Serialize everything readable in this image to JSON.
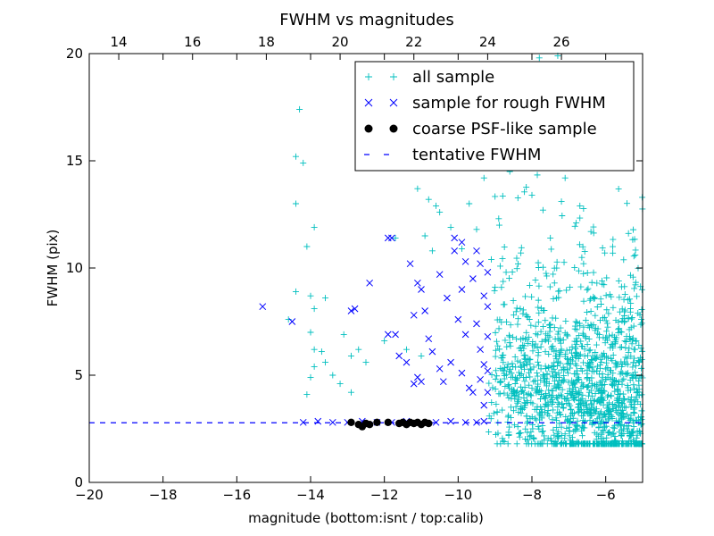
{
  "chart_data": {
    "type": "scatter",
    "title": "FWHM vs magnitudes",
    "xlabel": "magnitude (bottom:isnt / top:calib)",
    "ylabel": "FWHM (pix)",
    "xlim": [
      -20,
      -5
    ],
    "ylim": [
      0,
      20
    ],
    "x_ticks": [
      -20,
      -18,
      -16,
      -14,
      -12,
      -10,
      -8,
      -6
    ],
    "y_ticks": [
      0,
      5,
      10,
      15,
      20
    ],
    "top_axis": {
      "ticks": [
        14,
        16,
        18,
        20,
        22,
        24,
        26
      ],
      "offset": 33.2
    },
    "grid": false,
    "legend_position": "top-right",
    "series": [
      {
        "name": "all sample",
        "marker": "plus",
        "color": "#00bfbf",
        "points": [
          [
            -14.3,
            17.4
          ],
          [
            -14.4,
            15.2
          ],
          [
            -14.2,
            14.9
          ],
          [
            -14.4,
            13.0
          ],
          [
            -13.9,
            11.9
          ],
          [
            -14.1,
            11.0
          ],
          [
            -14.4,
            8.9
          ],
          [
            -14.0,
            8.7
          ],
          [
            -13.9,
            8.1
          ],
          [
            -14.6,
            7.6
          ],
          [
            -14.0,
            7.0
          ],
          [
            -13.9,
            6.2
          ],
          [
            -13.9,
            5.4
          ],
          [
            -14.0,
            4.9
          ],
          [
            -14.1,
            4.1
          ],
          [
            -13.7,
            6.1
          ],
          [
            -13.6,
            5.6
          ],
          [
            -13.4,
            5.0
          ],
          [
            -13.2,
            4.6
          ],
          [
            -12.9,
            5.9
          ],
          [
            -12.7,
            6.2
          ],
          [
            -12.9,
            4.2
          ],
          [
            -12.5,
            5.6
          ],
          [
            -12.0,
            6.6
          ],
          [
            -11.4,
            6.2
          ],
          [
            -11.0,
            5.9
          ],
          [
            -13.6,
            8.6
          ],
          [
            -13.1,
            6.9
          ],
          [
            -11.7,
            11.4
          ],
          [
            -11.1,
            13.7
          ],
          [
            -10.8,
            13.2
          ],
          [
            -10.6,
            12.9
          ],
          [
            -10.7,
            10.8
          ],
          [
            -10.2,
            11.9
          ],
          [
            -10.9,
            11.5
          ],
          [
            -9.7,
            13.0
          ],
          [
            -9.3,
            14.2
          ],
          [
            -10.5,
            12.6
          ],
          [
            -9.9,
            10.9
          ],
          [
            -9.5,
            11.8
          ],
          [
            -8.8,
            15.6
          ],
          [
            -8.5,
            16.6
          ],
          [
            -8.2,
            17.2
          ],
          [
            -7.9,
            16.1
          ],
          [
            -7.4,
            15.3
          ],
          [
            -7.1,
            14.2
          ],
          [
            -6.8,
            12.1
          ],
          [
            -6.4,
            11.7
          ],
          [
            -6.1,
            9.4
          ],
          [
            -5.2,
            10.6
          ],
          [
            -6.0,
            5.3
          ],
          [
            -5.4,
            5.1
          ],
          [
            -5.1,
            5.6
          ],
          [
            -7.8,
            19.8
          ],
          [
            -7.3,
            19.9
          ],
          [
            -6.9,
            18.6
          ],
          [
            -8.1,
            18.3
          ],
          [
            -7.6,
            17.6
          ],
          [
            -8.6,
            14.5
          ],
          [
            -8.0,
            13.4
          ],
          [
            -7.7,
            12.7
          ],
          [
            -7.2,
            13.1
          ],
          [
            -6.7,
            12.9
          ],
          [
            -7.5,
            11.4
          ],
          [
            -8.3,
            10.7
          ],
          [
            -6.6,
            10.2
          ],
          [
            -6.3,
            8.6
          ],
          [
            -8.9,
            12.3
          ],
          [
            -9.1,
            10.4
          ],
          [
            -8.7,
            9.8
          ],
          [
            -9.0,
            9.1
          ],
          [
            -7.4,
            2.2
          ],
          [
            -7.7,
            2.4
          ],
          [
            -6.9,
            1.9
          ],
          [
            -5.8,
            2.3
          ]
        ]
      },
      {
        "name": "sample for rough FWHM",
        "marker": "x",
        "color": "#0000ff",
        "points": [
          [
            -15.3,
            8.2
          ],
          [
            -14.5,
            7.5
          ],
          [
            -12.9,
            8.0
          ],
          [
            -12.8,
            8.1
          ],
          [
            -12.4,
            9.3
          ],
          [
            -11.9,
            11.4
          ],
          [
            -11.8,
            11.4
          ],
          [
            -11.9,
            6.9
          ],
          [
            -11.7,
            6.9
          ],
          [
            -11.6,
            5.9
          ],
          [
            -11.4,
            5.6
          ],
          [
            -11.1,
            4.9
          ],
          [
            -11.2,
            4.6
          ],
          [
            -11.0,
            4.7
          ],
          [
            -11.3,
            10.2
          ],
          [
            -11.1,
            9.3
          ],
          [
            -11.0,
            9.0
          ],
          [
            -10.9,
            8.0
          ],
          [
            -11.2,
            7.8
          ],
          [
            -10.8,
            6.7
          ],
          [
            -10.7,
            6.1
          ],
          [
            -10.5,
            5.3
          ],
          [
            -10.4,
            4.7
          ],
          [
            -10.3,
            8.6
          ],
          [
            -10.5,
            9.7
          ],
          [
            -10.1,
            10.8
          ],
          [
            -10.1,
            11.4
          ],
          [
            -9.9,
            11.2
          ],
          [
            -9.8,
            10.3
          ],
          [
            -9.9,
            9.0
          ],
          [
            -10.0,
            7.6
          ],
          [
            -9.8,
            6.9
          ],
          [
            -10.2,
            5.6
          ],
          [
            -9.9,
            5.1
          ],
          [
            -9.7,
            4.4
          ],
          [
            -9.6,
            4.2
          ],
          [
            -9.5,
            10.8
          ],
          [
            -9.4,
            10.2
          ],
          [
            -9.6,
            9.5
          ],
          [
            -9.3,
            8.7
          ],
          [
            -9.5,
            7.4
          ],
          [
            -9.4,
            6.2
          ],
          [
            -9.3,
            5.5
          ],
          [
            -9.4,
            4.8
          ],
          [
            -9.3,
            3.6
          ],
          [
            -9.2,
            9.8
          ],
          [
            -9.2,
            8.2
          ],
          [
            -9.2,
            6.8
          ],
          [
            -9.2,
            5.2
          ],
          [
            -9.2,
            4.2
          ],
          [
            -14.2,
            2.8
          ],
          [
            -13.8,
            2.85
          ],
          [
            -13.4,
            2.8
          ],
          [
            -13.0,
            2.8
          ],
          [
            -12.6,
            2.85
          ],
          [
            -12.2,
            2.8
          ],
          [
            -11.8,
            2.8
          ],
          [
            -11.4,
            2.85
          ],
          [
            -11.0,
            2.8
          ],
          [
            -10.6,
            2.8
          ],
          [
            -10.2,
            2.85
          ],
          [
            -9.8,
            2.8
          ],
          [
            -9.5,
            2.8
          ],
          [
            -9.3,
            2.85
          ]
        ]
      },
      {
        "name": "coarse PSF-like sample",
        "marker": "dot",
        "color": "#000000",
        "points": [
          [
            -12.9,
            2.8
          ],
          [
            -12.7,
            2.7
          ],
          [
            -12.6,
            2.6
          ],
          [
            -12.5,
            2.75
          ],
          [
            -12.4,
            2.7
          ],
          [
            -12.2,
            2.8
          ],
          [
            -11.9,
            2.8
          ],
          [
            -11.6,
            2.75
          ],
          [
            -11.5,
            2.8
          ],
          [
            -11.4,
            2.7
          ],
          [
            -11.3,
            2.8
          ],
          [
            -11.2,
            2.75
          ],
          [
            -11.1,
            2.8
          ],
          [
            -11.0,
            2.7
          ],
          [
            -10.9,
            2.8
          ],
          [
            -10.8,
            2.75
          ]
        ]
      },
      {
        "name": "tentative FWHM",
        "marker": "dashed-line",
        "color": "#0000ff",
        "value": 2.78
      }
    ]
  }
}
